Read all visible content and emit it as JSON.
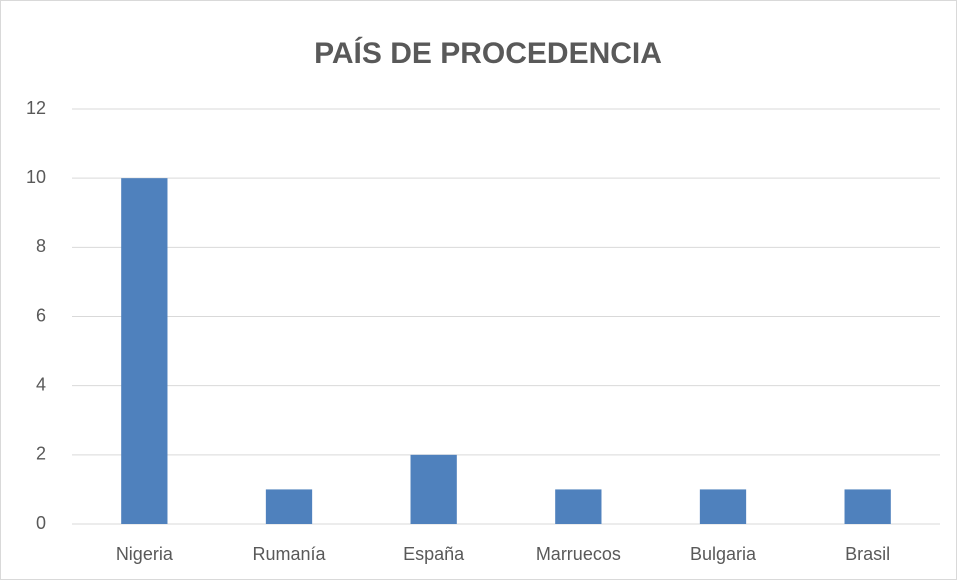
{
  "chart_data": {
    "type": "bar",
    "title": "PAÍS DE PROCEDENCIA",
    "categories": [
      "Nigeria",
      "Rumanía",
      "España",
      "Marruecos",
      "Bulgaria",
      "Brasil"
    ],
    "values": [
      10,
      1,
      2,
      1,
      1,
      1
    ],
    "color": "#4f81bd",
    "ylim": [
      0,
      12
    ],
    "yticks": [
      0,
      2,
      4,
      6,
      8,
      10,
      12
    ],
    "grid": true
  }
}
